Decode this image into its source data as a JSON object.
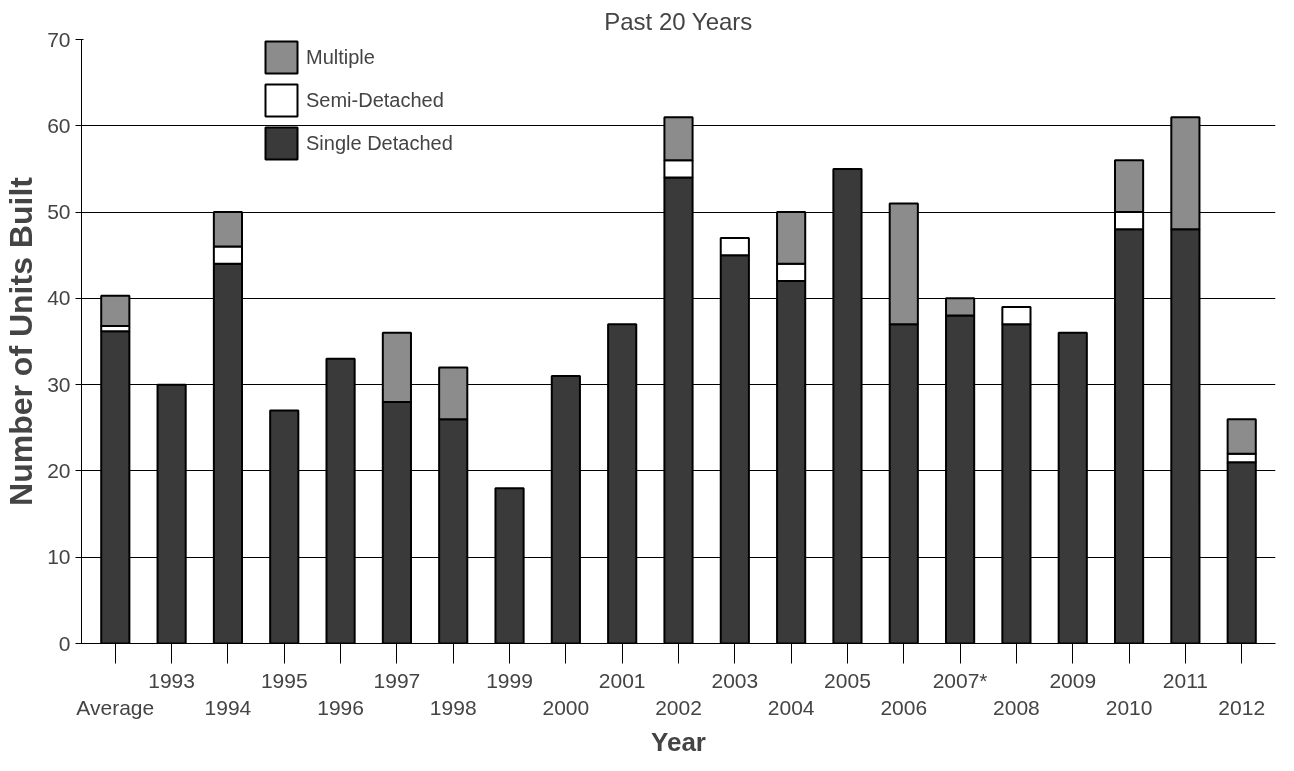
{
  "chart_data": {
    "type": "bar",
    "title": "Past 20 Years",
    "xlabel": "Year",
    "ylabel": "Number of Units Built",
    "categories": [
      "Average",
      "1993",
      "1994",
      "1995",
      "1996",
      "1997",
      "1998",
      "1999",
      "2000",
      "2001",
      "2002",
      "2003",
      "2004",
      "2005",
      "2006",
      "2007*",
      "2008",
      "2009",
      "2010",
      "2011",
      "2012"
    ],
    "stacked": true,
    "series": [
      {
        "name": "Single Detached",
        "color": "#3a3a3a",
        "values": [
          36.2,
          30,
          44,
          27,
          33,
          28,
          26,
          18,
          31,
          37,
          54,
          45,
          42,
          55,
          37,
          38,
          37,
          36,
          48,
          48,
          21
        ]
      },
      {
        "name": "Semi-Detached",
        "color": "#ffffff",
        "values": [
          0.6,
          0,
          2,
          0,
          0,
          0,
          0,
          0,
          0,
          0,
          2,
          2,
          2,
          0,
          0,
          0,
          2,
          0,
          2,
          0,
          1
        ]
      },
      {
        "name": "Multiple",
        "color": "#8c8c8c",
        "values": [
          3.5,
          0,
          4,
          0,
          0,
          8,
          6,
          0,
          0,
          0,
          5,
          0,
          6,
          0,
          14,
          2,
          0,
          0,
          6,
          13,
          4
        ]
      }
    ],
    "ylim": [
      0,
      70
    ],
    "yticks": [
      0,
      10,
      20,
      30,
      40,
      50,
      60,
      70
    ],
    "grid": "y",
    "legend": "top left"
  }
}
